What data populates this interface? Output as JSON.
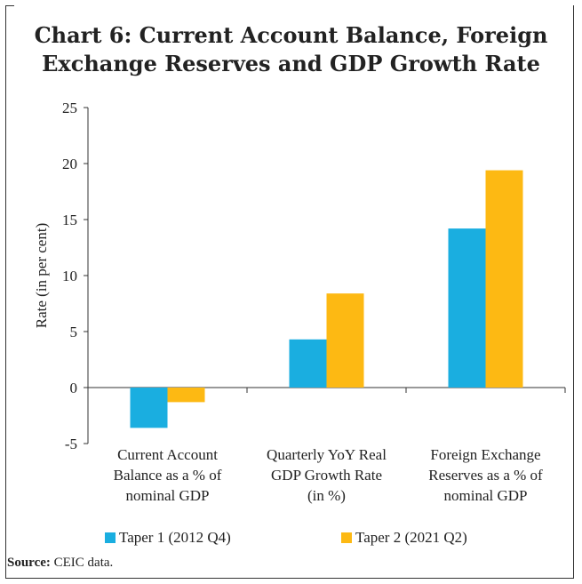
{
  "chart_data": {
    "type": "bar",
    "title_lines": [
      "Chart 6: Current Account Balance, Foreign",
      "Exchange Reserves and GDP Growth Rate"
    ],
    "ylabel": "Rate (in per cent)",
    "xlabel": "",
    "ylim": [
      -5,
      25
    ],
    "yticks": [
      25,
      20,
      15,
      10,
      5,
      0,
      -5
    ],
    "categories": [
      [
        "Current Account",
        "Balance as a % of",
        "nominal GDP"
      ],
      [
        "Quarterly YoY Real",
        "GDP Growth Rate",
        "(in %)"
      ],
      [
        "Foreign Exchange",
        "Reserves as a % of",
        "nominal GDP"
      ]
    ],
    "series": [
      {
        "name": "Taper 1 (2012 Q4)",
        "color": "#1AAEE0",
        "values": [
          -3.6,
          4.3,
          14.2
        ]
      },
      {
        "name": "Taper 2 (2021 Q2)",
        "color": "#FDB913",
        "values": [
          -1.3,
          8.4,
          19.4
        ]
      }
    ],
    "legend_position": "bottom",
    "grid": false
  },
  "source": {
    "label": "Source:",
    "text": " CEIC data."
  }
}
